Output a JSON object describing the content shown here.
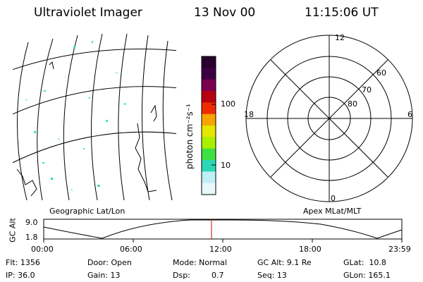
{
  "header": {
    "instrument": "Ultraviolet Imager",
    "date": "13 Nov 00",
    "time": "11:15:06 UT"
  },
  "left_panel": {
    "caption": "Geographic Lat/Lon"
  },
  "right_panel": {
    "caption": "Apex MLat/MLT",
    "mlt_labels": {
      "top": "12",
      "bottom": "0",
      "left": "18",
      "right": "6"
    },
    "lat_labels": [
      "60",
      "70",
      "80"
    ]
  },
  "colorbar": {
    "unit_label": "photon cm⁻²s⁻¹",
    "tick_labels": [
      "100",
      "10"
    ],
    "colors": [
      "#2a0030",
      "#3a0042",
      "#7a0050",
      "#b80012",
      "#ee2a00",
      "#f5a500",
      "#e6e600",
      "#a8f000",
      "#3ee040",
      "#2ad8b8",
      "#bfeff4",
      "#e8f8fa"
    ]
  },
  "timeline": {
    "y_axis_label": "GC Alt",
    "y_max": "9.0",
    "y_min": "1.8",
    "x_ticks": [
      "00:00",
      "06:00",
      "12:00",
      "18:00",
      "23:59"
    ],
    "marker_time": "11:15"
  },
  "info": {
    "flt": "Flt: 1356",
    "ip": "IP: 36.0",
    "door": "Door: Open",
    "gain": "Gain: 13",
    "mode": "Mode: Normal",
    "dsp_label": "Dsp:",
    "dsp_value": "0.7",
    "gc_alt": "GC Alt: 9.1 Re",
    "seq": "Seq: 13",
    "glat": "GLat:  10.8",
    "glon": "GLon: 165.1"
  }
}
